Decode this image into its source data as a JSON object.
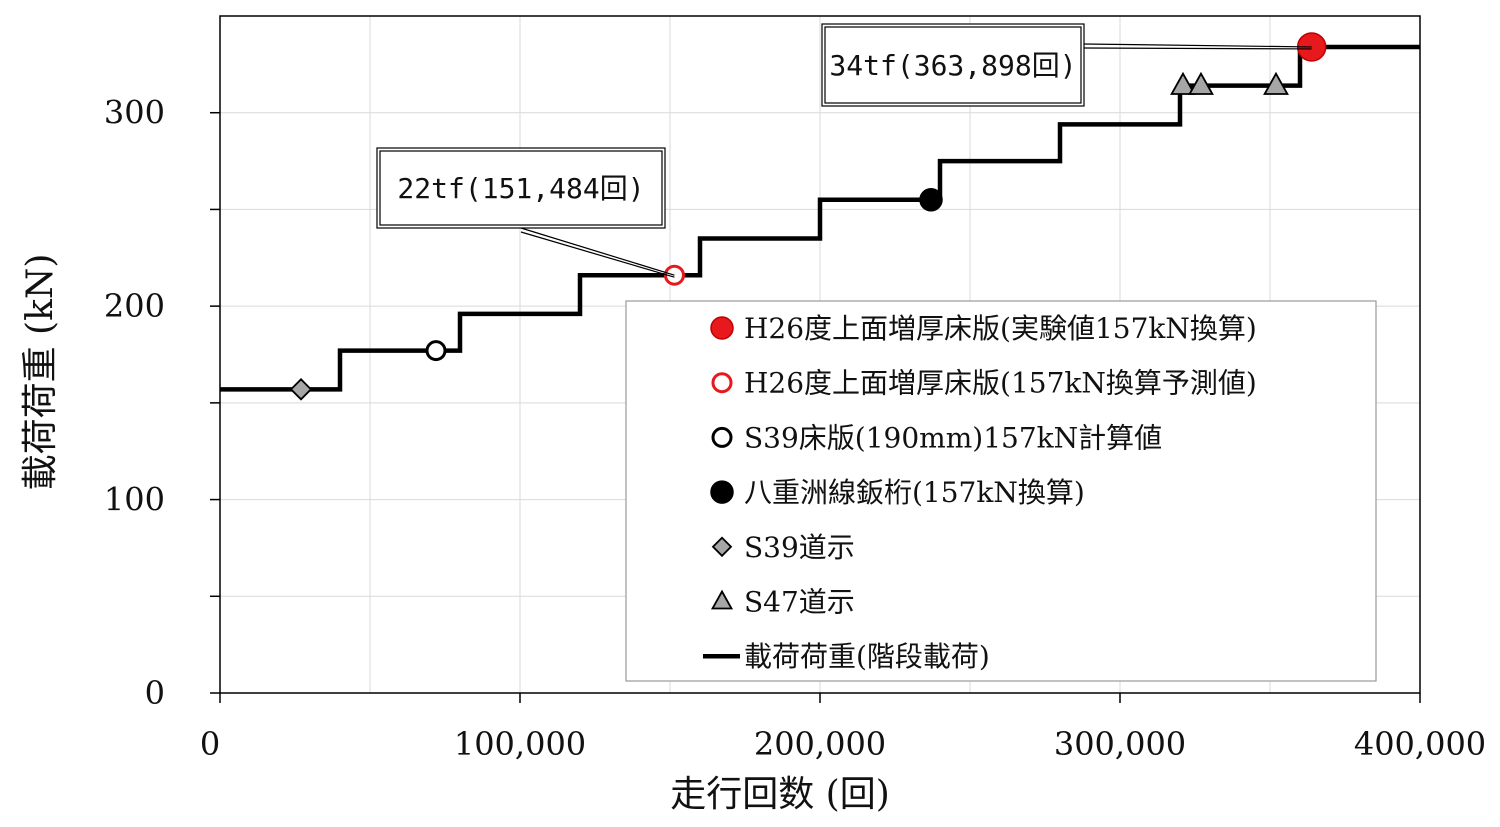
{
  "chart_data": {
    "type": "line",
    "xlabel": "走行回数 (回)",
    "ylabel": "載荷荷重 (kN)",
    "xlim": [
      0,
      400000
    ],
    "ylim": [
      0,
      350
    ],
    "x_ticks": [
      0,
      100000,
      200000,
      300000,
      400000
    ],
    "x_tick_labels": [
      "0",
      "100,000",
      "200,000",
      "300,000",
      "400,000"
    ],
    "y_ticks": [
      0,
      100,
      200,
      300
    ],
    "y_tick_labels": [
      "0",
      "100",
      "200",
      "300"
    ],
    "y_minor_ticks": [
      50,
      150,
      250
    ],
    "grid": true,
    "legend_position": "bottom-right",
    "series": [
      {
        "name": "H26度上面増厚床版(実験値157kN換算)",
        "kind": "marker",
        "marker": "circle",
        "fill": "#e8191d",
        "stroke": "#c00000",
        "x": [
          363898
        ],
        "y": [
          334
        ]
      },
      {
        "name": "H26度上面増厚床版(157kN換算予測値)",
        "kind": "marker",
        "marker": "circle-open",
        "fill": "#ffffff",
        "stroke": "#e8191d",
        "x": [
          151484
        ],
        "y": [
          216
        ]
      },
      {
        "name": "S39床版(190mm)157kN計算値",
        "kind": "marker",
        "marker": "circle-open",
        "fill": "#ffffff",
        "stroke": "#000000",
        "x": [
          72000
        ],
        "y": [
          177
        ]
      },
      {
        "name": "八重洲線鈑桁(157kN換算)",
        "kind": "marker",
        "marker": "circle",
        "fill": "#000000",
        "stroke": "#000000",
        "x": [
          237000
        ],
        "y": [
          255
        ]
      },
      {
        "name": "S39道示",
        "kind": "marker",
        "marker": "diamond",
        "fill": "#a6a6a6",
        "stroke": "#000000",
        "x": [
          27000
        ],
        "y": [
          157
        ]
      },
      {
        "name": "S47道示",
        "kind": "marker",
        "marker": "triangle",
        "fill": "#a6a6a6",
        "stroke": "#000000",
        "x": [
          321000,
          327000,
          352000
        ],
        "y": [
          314,
          314,
          314
        ]
      },
      {
        "name": "載荷荷重(階段載荷)",
        "kind": "line",
        "stroke": "#000000",
        "x": [
          0,
          40000,
          40000,
          80000,
          80000,
          120000,
          120000,
          160000,
          160000,
          200000,
          200000,
          240000,
          240000,
          280000,
          280000,
          320000,
          320000,
          360000,
          360000,
          400000
        ],
        "y": [
          157,
          157,
          177,
          177,
          196,
          196,
          216,
          216,
          235,
          235,
          255,
          255,
          275,
          275,
          294,
          294,
          314,
          314,
          334,
          334
        ]
      }
    ],
    "annotations": [
      {
        "text": "34tf(363,898回)",
        "x": 363898,
        "y": 334
      },
      {
        "text": "22tf(151,484回)",
        "x": 151484,
        "y": 216
      }
    ]
  }
}
